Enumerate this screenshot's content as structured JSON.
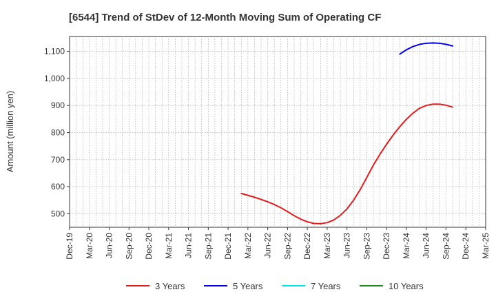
{
  "chart_data": {
    "type": "line",
    "title": "[6544]  Trend of StDev of 12-Month Moving Sum of Operating CF",
    "ylabel": "Amount (million yen)",
    "xlabel": "",
    "x_ticks": [
      "Dec-19",
      "Mar-20",
      "Jun-20",
      "Sep-20",
      "Dec-20",
      "Mar-21",
      "Jun-21",
      "Sep-21",
      "Dec-21",
      "Mar-22",
      "Jun-22",
      "Sep-22",
      "Dec-22",
      "Mar-23",
      "Jun-23",
      "Sep-23",
      "Dec-23",
      "Mar-24",
      "Jun-24",
      "Sep-24",
      "Dec-24",
      "Mar-25"
    ],
    "x_range": [
      "2019-12",
      "2025-03"
    ],
    "y_ticks": [
      500,
      600,
      700,
      800,
      900,
      1000,
      1100
    ],
    "y_tick_labels": [
      "500",
      "600",
      "700",
      "800",
      "900",
      "1,000",
      "1,100"
    ],
    "ylim": [
      450,
      1155
    ],
    "grid": true,
    "legend_position": "bottom",
    "series": [
      {
        "name": "3 Years",
        "color": "#e31a1c",
        "points": [
          [
            "2022-02",
            575
          ],
          [
            "2022-03",
            568
          ],
          [
            "2022-04",
            561
          ],
          [
            "2022-05",
            553
          ],
          [
            "2022-06",
            544
          ],
          [
            "2022-07",
            534
          ],
          [
            "2022-08",
            522
          ],
          [
            "2022-09",
            508
          ],
          [
            "2022-10",
            493
          ],
          [
            "2022-11",
            480
          ],
          [
            "2022-12",
            470
          ],
          [
            "2023-01",
            464
          ],
          [
            "2023-02",
            463
          ],
          [
            "2023-03",
            467
          ],
          [
            "2023-04",
            477
          ],
          [
            "2023-05",
            494
          ],
          [
            "2023-06",
            518
          ],
          [
            "2023-07",
            550
          ],
          [
            "2023-08",
            589
          ],
          [
            "2023-09",
            634
          ],
          [
            "2023-10",
            680
          ],
          [
            "2023-11",
            720
          ],
          [
            "2023-12",
            757
          ],
          [
            "2024-01",
            791
          ],
          [
            "2024-02",
            822
          ],
          [
            "2024-03",
            849
          ],
          [
            "2024-04",
            872
          ],
          [
            "2024-05",
            890
          ],
          [
            "2024-06",
            900
          ],
          [
            "2024-07",
            905
          ],
          [
            "2024-08",
            905
          ],
          [
            "2024-09",
            901
          ],
          [
            "2024-10",
            894
          ]
        ]
      },
      {
        "name": "5 Years",
        "color": "#0000ee",
        "points": [
          [
            "2024-02",
            1090
          ],
          [
            "2024-03",
            1106
          ],
          [
            "2024-04",
            1118
          ],
          [
            "2024-05",
            1126
          ],
          [
            "2024-06",
            1130
          ],
          [
            "2024-07",
            1131
          ],
          [
            "2024-08",
            1130
          ],
          [
            "2024-09",
            1126
          ],
          [
            "2024-10",
            1120
          ]
        ]
      },
      {
        "name": "7 Years",
        "color": "#00e5ee",
        "points": []
      },
      {
        "name": "10 Years",
        "color": "#1a8a1a",
        "points": []
      }
    ]
  }
}
